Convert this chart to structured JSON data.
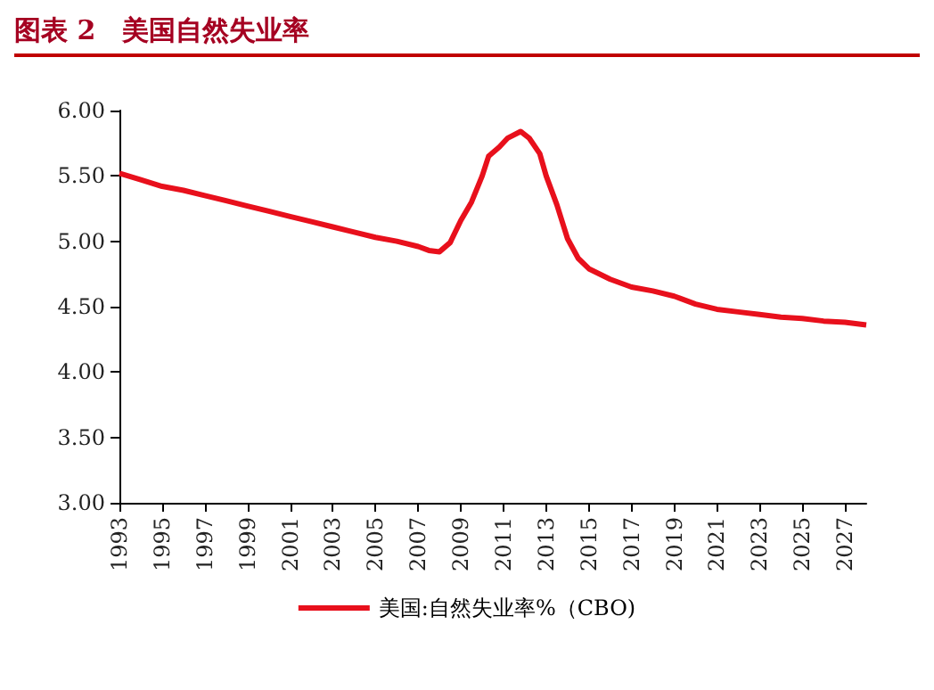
{
  "chart_data": {
    "type": "line",
    "title": "图表 2　美国自然失业率",
    "x": [
      1993,
      1994,
      1995,
      1996,
      1997,
      1998,
      1999,
      2000,
      2001,
      2002,
      2003,
      2004,
      2005,
      2006,
      2007,
      2007.5,
      2008,
      2008.5,
      2009,
      2009.5,
      2010,
      2010.3,
      2010.8,
      2011.2,
      2011.8,
      2012.2,
      2012.7,
      2013,
      2013.5,
      2014,
      2014.5,
      2015,
      2016,
      2017,
      2018,
      2019,
      2020,
      2021,
      2022,
      2023,
      2024,
      2025,
      2026,
      2027,
      2028
    ],
    "series": [
      {
        "name": "美国:自然失业率%（CBO)",
        "color": "#e8101c",
        "values": [
          5.52,
          5.47,
          5.42,
          5.39,
          5.35,
          5.31,
          5.27,
          5.23,
          5.19,
          5.15,
          5.11,
          5.07,
          5.03,
          5.0,
          4.96,
          4.93,
          4.92,
          4.99,
          5.16,
          5.3,
          5.5,
          5.65,
          5.72,
          5.79,
          5.84,
          5.79,
          5.67,
          5.5,
          5.28,
          5.02,
          4.87,
          4.79,
          4.71,
          4.65,
          4.62,
          4.58,
          4.52,
          4.48,
          4.46,
          4.44,
          4.42,
          4.41,
          4.39,
          4.38,
          4.36
        ]
      }
    ],
    "xlim": [
      1993,
      2028
    ],
    "xticks": [
      1993,
      1995,
      1997,
      1999,
      2001,
      2003,
      2005,
      2007,
      2009,
      2011,
      2013,
      2015,
      2017,
      2019,
      2021,
      2023,
      2025,
      2027
    ],
    "ylim": [
      3,
      6
    ],
    "yticks": [
      {
        "value": 3,
        "label": "3.00"
      },
      {
        "value": 3.5,
        "label": "3.50"
      },
      {
        "value": 4,
        "label": "4.00"
      },
      {
        "value": 4.5,
        "label": "4.50"
      },
      {
        "value": 5,
        "label": "5.00"
      },
      {
        "value": 5.5,
        "label": "5.50"
      },
      {
        "value": 6,
        "label": "6.00"
      }
    ],
    "grid": false,
    "legend": "bottom",
    "marker": "none",
    "line_style": "solid"
  }
}
